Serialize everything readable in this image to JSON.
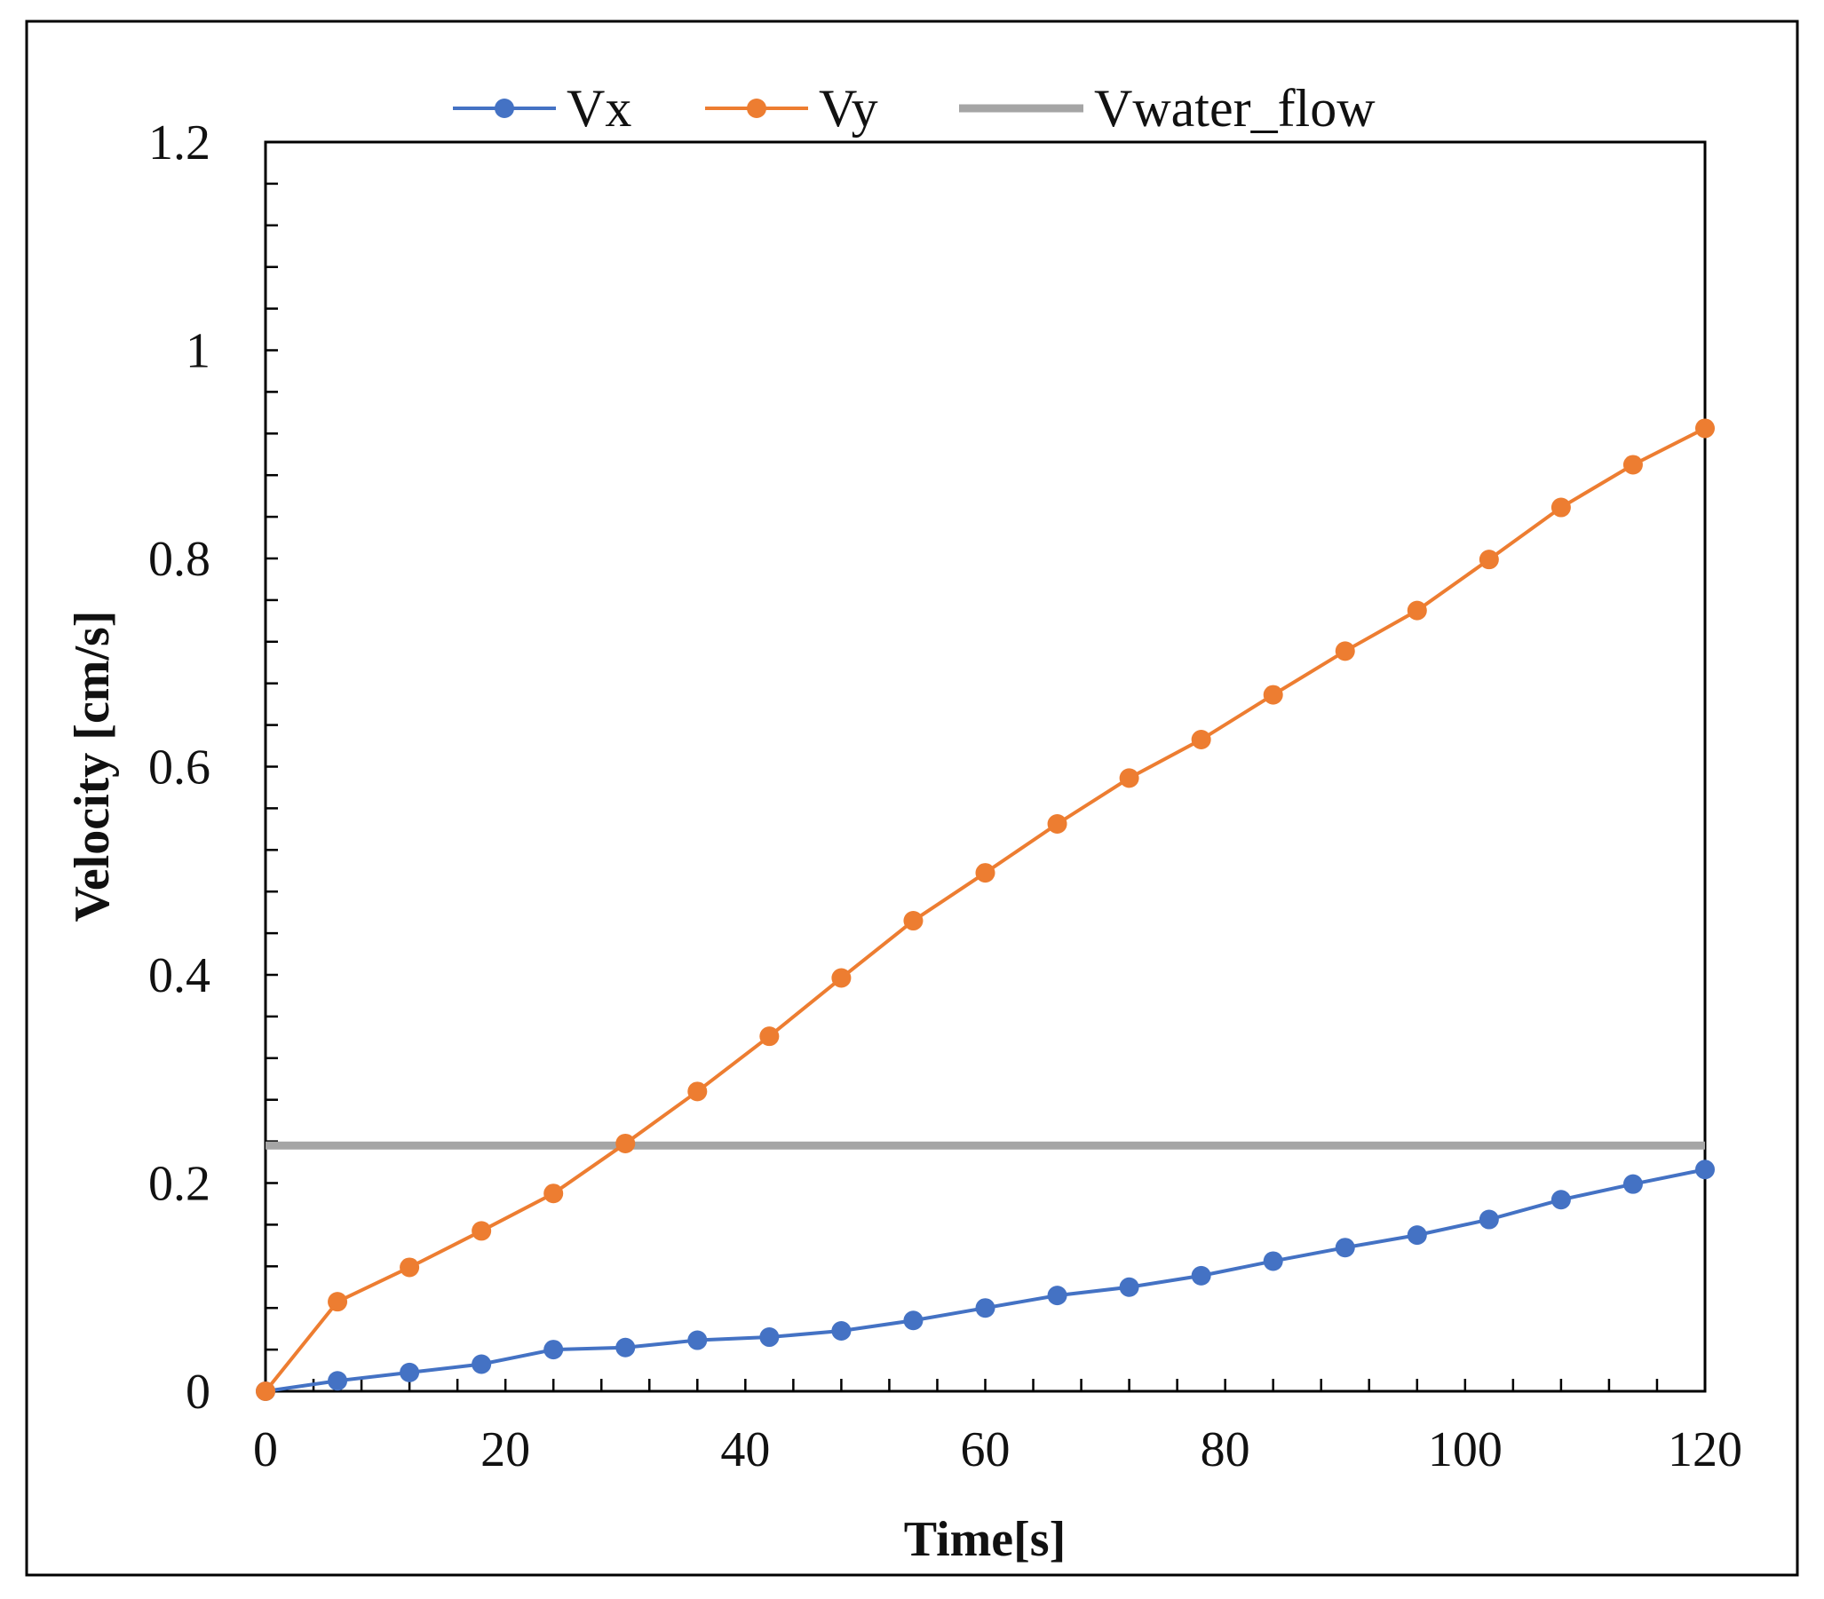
{
  "chart_data": {
    "type": "line",
    "title": "",
    "xlabel": "Time[s]",
    "ylabel": "Velocity [cm/s]",
    "xlim": [
      0,
      120
    ],
    "ylim": [
      0,
      1.2
    ],
    "x_ticks": [
      0,
      20,
      40,
      60,
      80,
      100,
      120
    ],
    "x_tick_labels": [
      "0",
      "20",
      "40",
      "60",
      "80",
      "100",
      "120"
    ],
    "y_ticks": [
      0,
      0.2,
      0.4,
      0.6,
      0.8,
      1,
      1.2
    ],
    "y_tick_labels": [
      "0",
      "0.2",
      "0.4",
      "0.6",
      "0.8",
      "1",
      "1.2"
    ],
    "x_minor_step": 4,
    "y_minor_step": 0.04,
    "grid": false,
    "legend_position": "top-center",
    "series": [
      {
        "name": "Vx",
        "color": "#4472C4",
        "marker": "circle",
        "x": [
          0,
          6,
          12,
          18,
          24,
          30,
          36,
          42,
          48,
          54,
          60,
          66,
          72,
          78,
          84,
          90,
          96,
          102,
          108,
          114,
          120
        ],
        "y": [
          0,
          0.01,
          0.018,
          0.026,
          0.04,
          0.042,
          0.049,
          0.052,
          0.058,
          0.068,
          0.08,
          0.092,
          0.1,
          0.111,
          0.125,
          0.138,
          0.15,
          0.165,
          0.184,
          0.199,
          0.213
        ]
      },
      {
        "name": "Vy",
        "color": "#ED7D31",
        "marker": "circle",
        "x": [
          0,
          6,
          12,
          18,
          24,
          30,
          36,
          42,
          48,
          54,
          60,
          66,
          72,
          78,
          84,
          90,
          96,
          102,
          108,
          114,
          120
        ],
        "y": [
          0,
          0.086,
          0.119,
          0.154,
          0.19,
          0.238,
          0.288,
          0.341,
          0.397,
          0.452,
          0.498,
          0.545,
          0.589,
          0.626,
          0.669,
          0.711,
          0.75,
          0.799,
          0.849,
          0.89,
          0.925
        ]
      },
      {
        "name": "Vwater_flow",
        "color": "#A5A5A5",
        "marker": "none",
        "x": [
          0,
          120
        ],
        "y": [
          0.236,
          0.236
        ]
      }
    ]
  }
}
